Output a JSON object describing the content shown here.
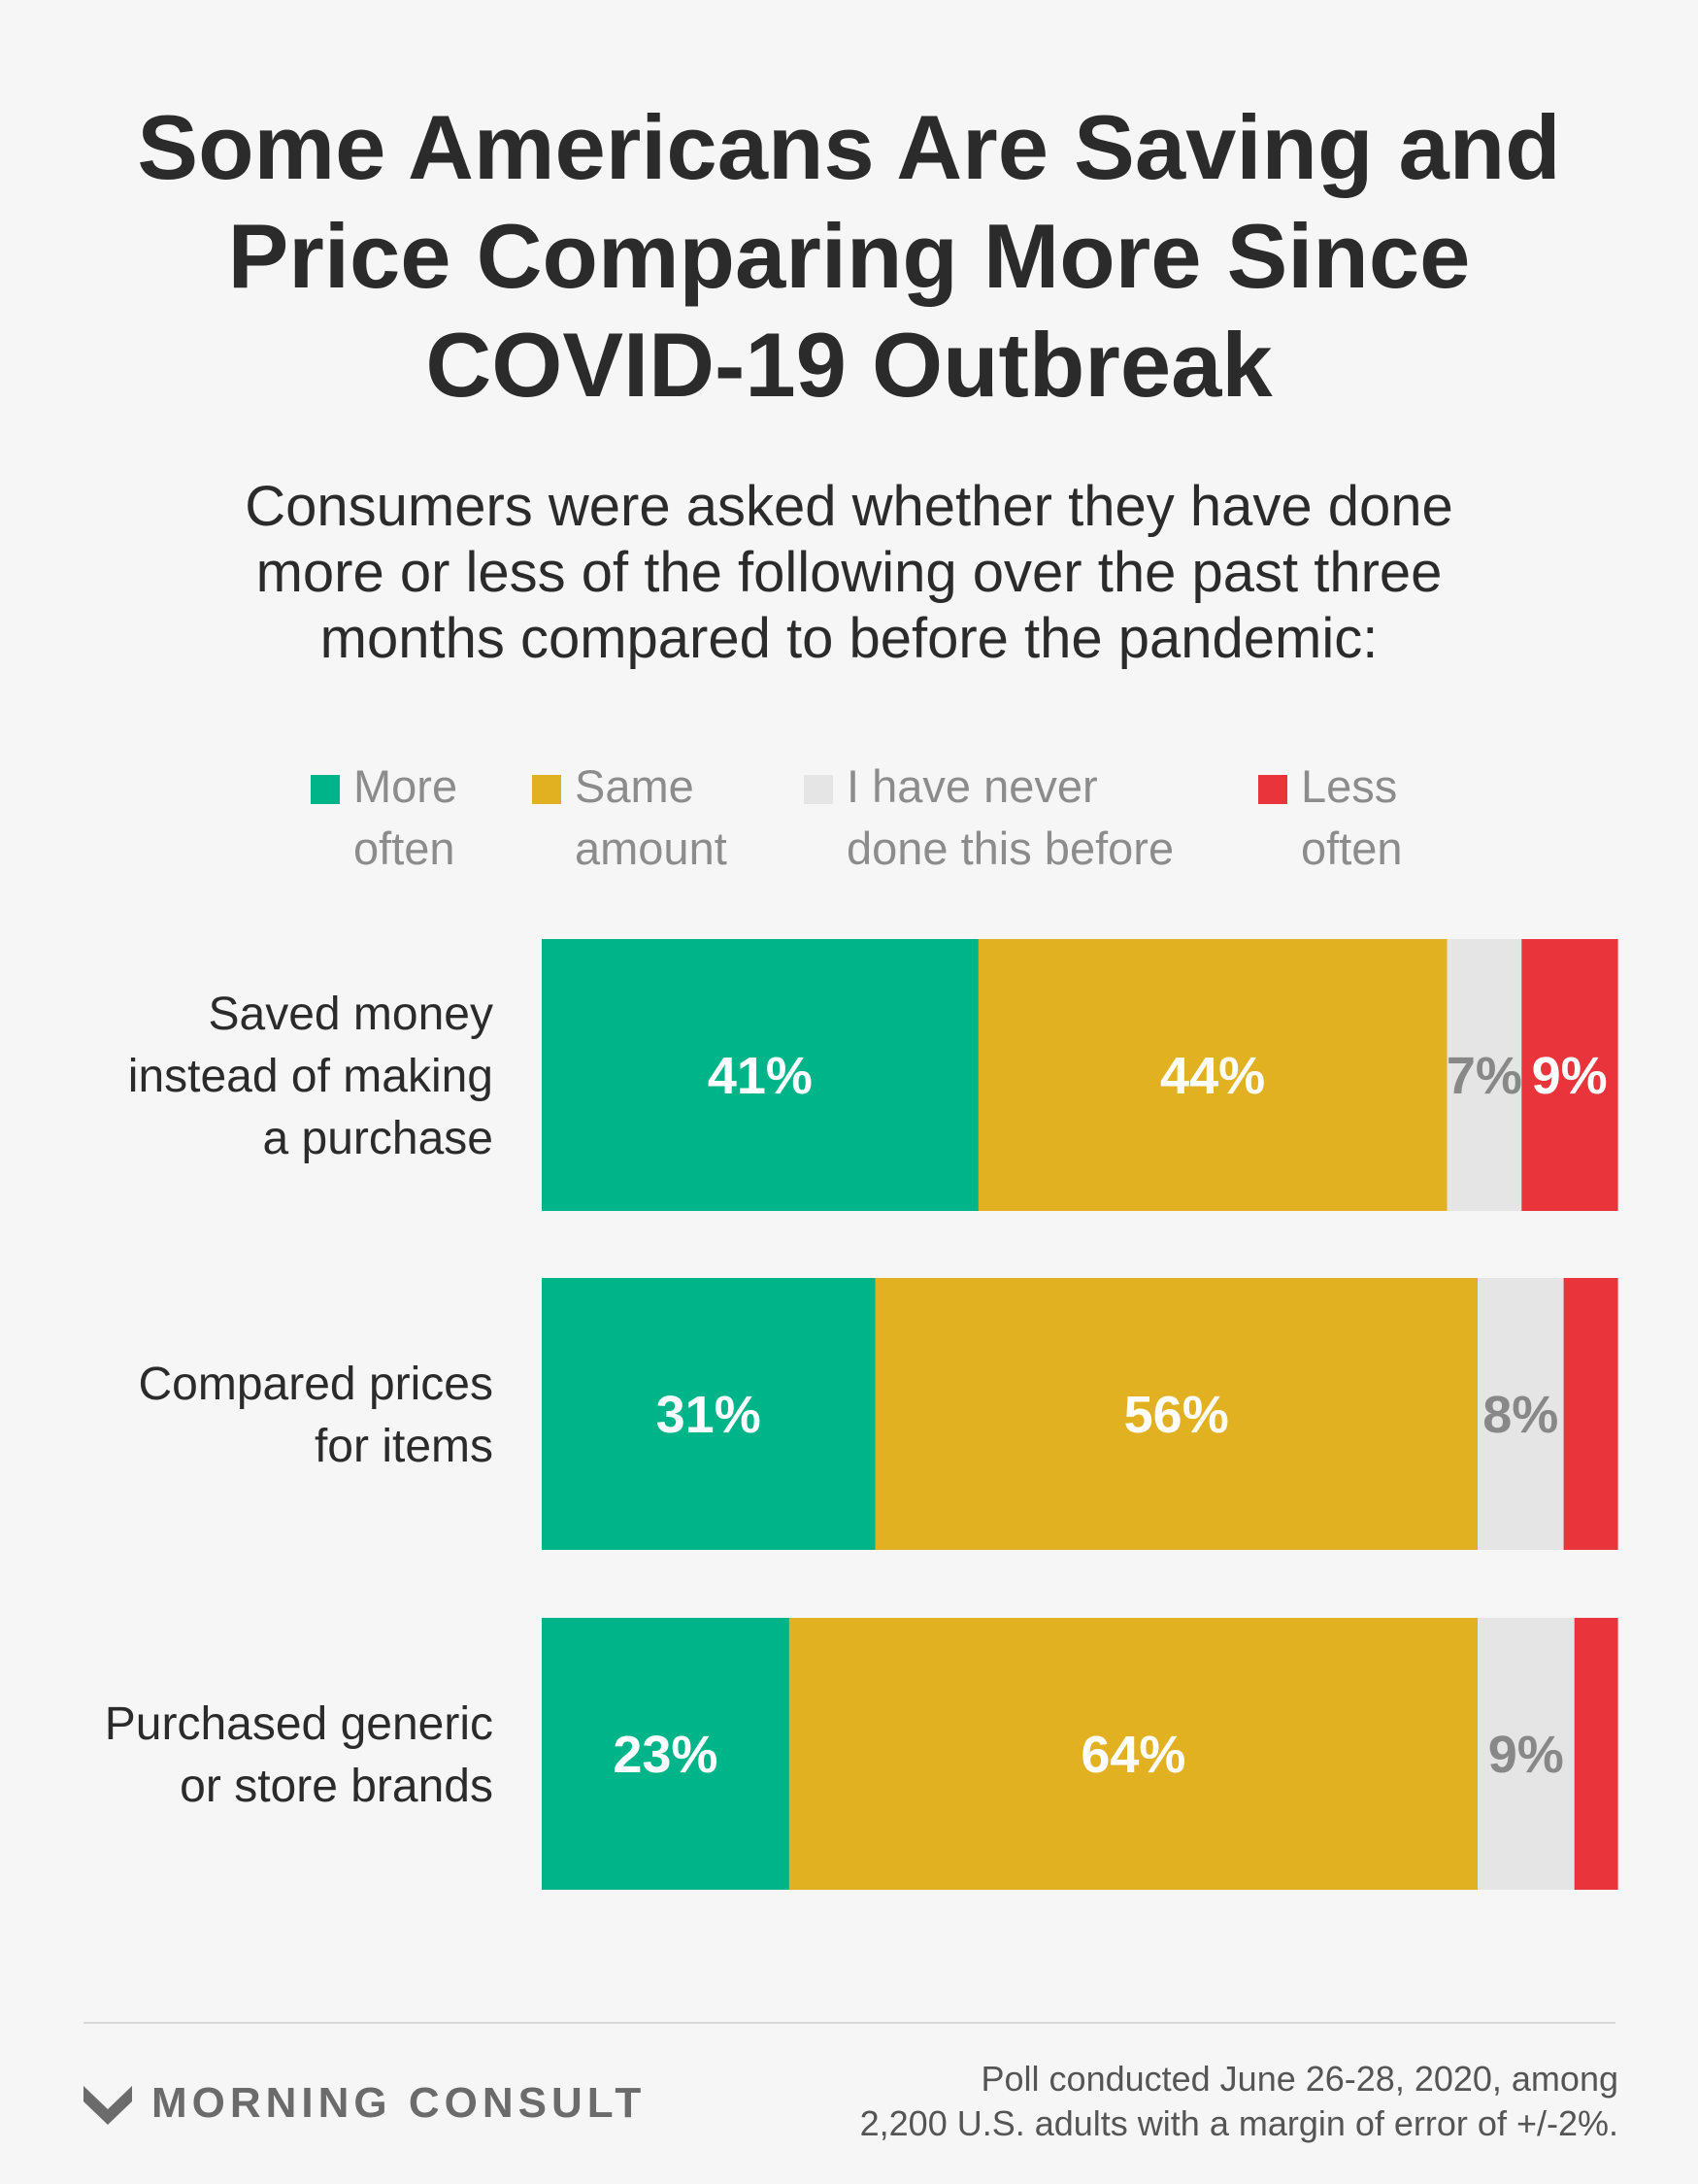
{
  "title": [
    "Some Americans Are Saving and",
    "Price Comparing More Since",
    "COVID-19 Outbreak"
  ],
  "subtitle": [
    "Consumers were asked whether they have done",
    "more or less of the following over the past three",
    "months compared to before the pandemic:"
  ],
  "colors": {
    "more": "#00b48a",
    "same": "#e2b122",
    "never": "#e5e5e5",
    "less": "#e8343a"
  },
  "chart_data": {
    "type": "bar",
    "orientation": "horizontal",
    "stacked": true,
    "categories": [
      [
        "Saved money",
        "instead of making",
        "a purchase"
      ],
      [
        "Compared prices",
        "for items"
      ],
      [
        "Purchased generic",
        "or store brands"
      ]
    ],
    "series": [
      {
        "key": "more",
        "legend": [
          "More",
          "often"
        ],
        "values": [
          41,
          31,
          23
        ],
        "labels": [
          "41%",
          "31%",
          "23%"
        ]
      },
      {
        "key": "same",
        "legend": [
          "Same",
          "amount"
        ],
        "values": [
          44,
          56,
          64
        ],
        "labels": [
          "44%",
          "56%",
          "64%"
        ]
      },
      {
        "key": "never",
        "legend": [
          "I have never",
          "done this before"
        ],
        "values": [
          7,
          8,
          9
        ],
        "labels": [
          "7%",
          "8%",
          "9%"
        ]
      },
      {
        "key": "less",
        "legend": [
          "Less",
          "often"
        ],
        "values": [
          9,
          5,
          4
        ],
        "labels": [
          "9%",
          "",
          ""
        ]
      }
    ],
    "legend_position": "top",
    "grid": false
  },
  "brand": {
    "name": "MORNING CONSULT"
  },
  "footnote": [
    "Poll conducted June 26-28, 2020, among",
    "2,200 U.S. adults with a margin of error of +/-2%."
  ]
}
